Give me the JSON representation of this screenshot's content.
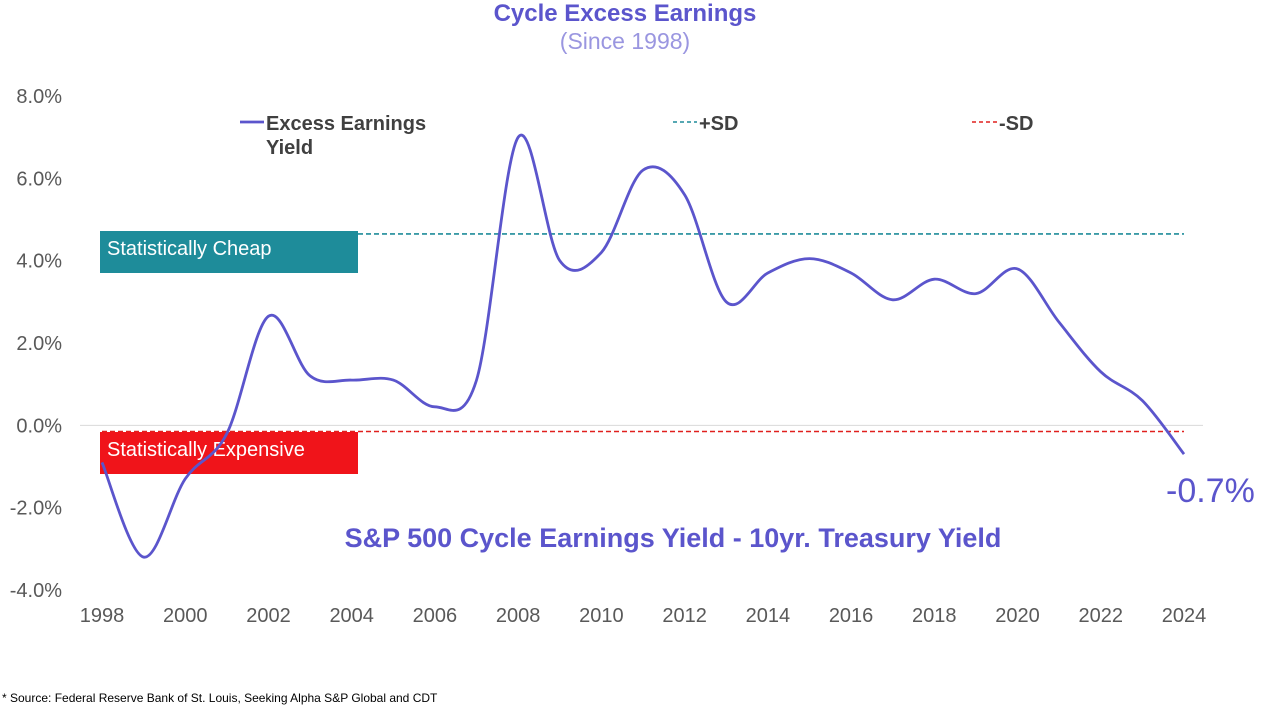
{
  "title": "Cycle Excess Earnings",
  "subtitle": "(Since 1998)",
  "source": "* Source: Federal Reserve Bank of St. Louis, Seeking Alpha S&P Global and CDT",
  "colors": {
    "line": "#5b55cc",
    "plus_sd": "#1e8c9a",
    "minus_sd": "#e0201e",
    "cheap_box": "#1e8c9a",
    "expensive_box": "#f0141a",
    "axis_text": "#595959",
    "legend_text": "#404040"
  },
  "chart_data": {
    "type": "line",
    "title": "Cycle Excess Earnings",
    "subtitle": "(Since 1998)",
    "ylim": [
      -4,
      8
    ],
    "xlim": [
      1998,
      2024
    ],
    "y_ticks": [
      8,
      6,
      4,
      2,
      0,
      -2,
      -4
    ],
    "y_tick_labels": [
      "8.0%",
      "6.0%",
      "4.0%",
      "2.0%",
      "0.0%",
      "-2.0%",
      "-4.0%"
    ],
    "x_ticks": [
      1998,
      2000,
      2002,
      2004,
      2006,
      2008,
      2010,
      2012,
      2014,
      2016,
      2018,
      2020,
      2022,
      2024
    ],
    "x_tick_labels": [
      "1998",
      "2000",
      "2002",
      "2004",
      "2006",
      "2008",
      "2010",
      "2012",
      "2014",
      "2016",
      "2018",
      "2020",
      "2022",
      "2024"
    ],
    "series": [
      {
        "name": "Excess Earnings Yield",
        "x": [
          1998,
          1999,
          2000,
          2001,
          2002,
          2003,
          2004,
          2005,
          2006,
          2007,
          2008,
          2009,
          2010,
          2011,
          2012,
          2013,
          2014,
          2015,
          2016,
          2017,
          2018,
          2019,
          2020,
          2021,
          2022,
          2023,
          2024
        ],
        "values": [
          -0.9,
          -3.2,
          -1.3,
          -0.2,
          2.65,
          1.2,
          1.1,
          1.1,
          0.45,
          1.1,
          7.0,
          4.0,
          4.2,
          6.2,
          5.6,
          3.0,
          3.7,
          4.05,
          3.7,
          3.05,
          3.55,
          3.2,
          3.8,
          2.5,
          1.3,
          0.6,
          -0.7
        ]
      },
      {
        "name": "+SD",
        "style": "dashed",
        "value": 4.65
      },
      {
        "name": "-SD",
        "style": "dashed",
        "value": -0.15
      }
    ],
    "legend": {
      "placement": "top",
      "items": [
        {
          "label_line1": "Excess Earnings",
          "label_line2": "Yield"
        },
        {
          "label": "+SD"
        },
        {
          "label": "-SD"
        }
      ]
    },
    "annotations": {
      "cheap": "Statistically Cheap",
      "expensive": "Statistically Expensive",
      "inner_title": "S&P 500 Cycle Earnings Yield - 10yr. Treasury Yield",
      "last_value": "-0.7%"
    }
  }
}
